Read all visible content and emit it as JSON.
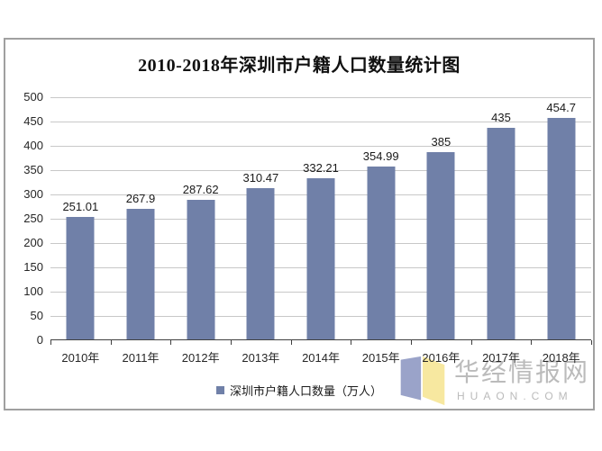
{
  "chart_data": {
    "type": "bar",
    "title": "2010-2018年深圳市户籍人口数量统计图",
    "categories": [
      "2010年",
      "2011年",
      "2012年",
      "2013年",
      "2014年",
      "2015年",
      "2016年",
      "2017年",
      "2018年"
    ],
    "values": [
      251.01,
      267.9,
      287.62,
      310.47,
      332.21,
      354.99,
      385,
      435,
      454.7
    ],
    "value_labels": [
      "251.01",
      "267.9",
      "287.62",
      "310.47",
      "332.21",
      "354.99",
      "385",
      "435",
      "454.7"
    ],
    "legend": "深圳市户籍人口数量（万人）",
    "legend_position": "bottom",
    "xlabel": "",
    "ylabel": "",
    "ylim": [
      0,
      500
    ],
    "ytick_step": 50,
    "yticks": [
      "0",
      "50",
      "100",
      "150",
      "200",
      "250",
      "300",
      "350",
      "400",
      "450",
      "500"
    ],
    "grid": "horizontal"
  },
  "colors": {
    "bar": "#7080A8",
    "gridline": "#C8C8C8",
    "axis": "#404040",
    "frame": "#A0A0A0",
    "watermark_text": "#BBBBBB",
    "logo_blue": "#9AA3C9",
    "logo_yellow": "#F7E8A0"
  },
  "watermark": {
    "logo": "open-book-logo",
    "cn": "华经情报网",
    "en": "HUAON.COM"
  }
}
